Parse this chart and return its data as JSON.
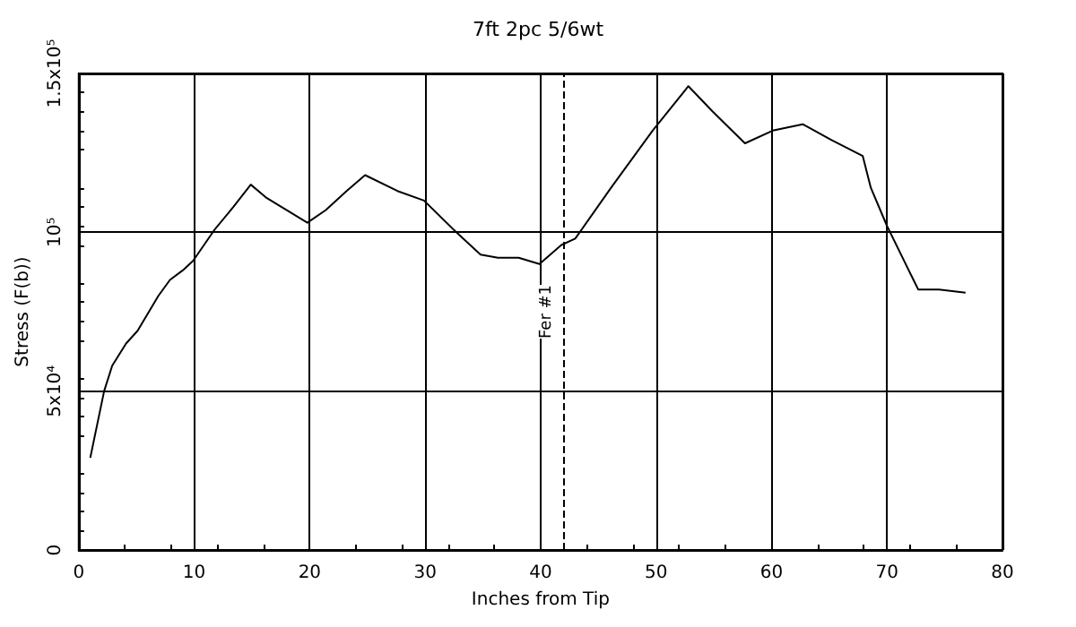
{
  "chart_data": {
    "type": "line",
    "title": "7ft 2pc 5/6wt",
    "xlabel": "Inches from Tip",
    "ylabel": "Stress (F(b))",
    "x": [
      1,
      2.2,
      2.9,
      4.1,
      5.1,
      6.9,
      7.9,
      9,
      9.9,
      11.8,
      13.4,
      14.9,
      16.2,
      19.8,
      21.4,
      23.2,
      24.8,
      27.6,
      29.9,
      32.7,
      34.8,
      36.3,
      38.1,
      39.9,
      41.8,
      43,
      46.1,
      49.7,
      52.8,
      54.9,
      57.7,
      60.1,
      62.7,
      65.2,
      67.9,
      68.6,
      70,
      72.7,
      74.5,
      76.8
    ],
    "series": [
      {
        "color": "#000000",
        "values": [
          29000,
          50000,
          58000,
          65000,
          69000,
          80000,
          85000,
          88000,
          91000,
          101000,
          108000,
          115000,
          111000,
          103000,
          107000,
          113000,
          118000,
          113000,
          110000,
          100000,
          93000,
          92000,
          92000,
          90000,
          96000,
          98000,
          114000,
          132000,
          146000,
          138000,
          128000,
          132000,
          134000,
          129000,
          124000,
          114000,
          102000,
          82000,
          82000,
          81000
        ]
      }
    ],
    "xlim": [
      0,
      80
    ],
    "xticks": [
      0,
      10,
      20,
      30,
      40,
      50,
      60,
      70,
      80
    ],
    "ylim": [
      0,
      150000
    ],
    "yticks": [
      0,
      {
        "value": 50000,
        "label": "5x10⁴"
      },
      {
        "value": 100000,
        "label": "10⁵"
      },
      {
        "value": 150000,
        "label": "1.5x10⁵"
      }
    ],
    "ref_lines": [
      {
        "axis": "x",
        "value": 42,
        "label": "Fer #1",
        "line_style": "dashed"
      }
    ],
    "grid": true,
    "marker": "none",
    "line_style": "solid"
  }
}
